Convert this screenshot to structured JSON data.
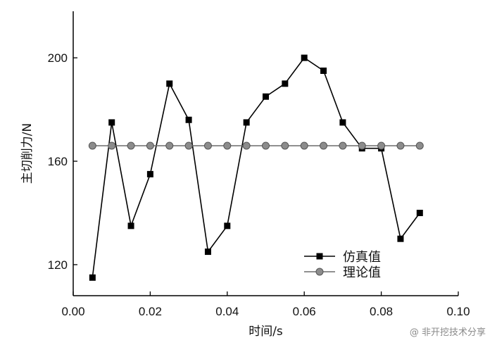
{
  "chart_data": {
    "type": "line",
    "title": "",
    "xlabel": "时间/s",
    "ylabel": "主切削力/N",
    "xlim": [
      0.0,
      0.1
    ],
    "ylim": [
      108,
      218
    ],
    "xticks": [
      "0.00",
      "0.02",
      "0.04",
      "0.06",
      "0.08",
      "0.10"
    ],
    "yticks": [
      "120",
      "160",
      "200"
    ],
    "grid": false,
    "legend_position": "bottom-right",
    "series": [
      {
        "name": "仿真值",
        "marker": "square",
        "color": "#000000",
        "x": [
          0.005,
          0.01,
          0.015,
          0.02,
          0.025,
          0.03,
          0.035,
          0.04,
          0.045,
          0.05,
          0.055,
          0.06,
          0.065,
          0.07,
          0.075,
          0.08,
          0.085,
          0.09
        ],
        "y": [
          115,
          175,
          135,
          155,
          190,
          176,
          125,
          135,
          175,
          185,
          190,
          200,
          195,
          175,
          165,
          165,
          130,
          140
        ]
      },
      {
        "name": "理论值",
        "marker": "circle",
        "color": "#6b6b6b",
        "x": [
          0.005,
          0.01,
          0.015,
          0.02,
          0.025,
          0.03,
          0.035,
          0.04,
          0.045,
          0.05,
          0.055,
          0.06,
          0.065,
          0.07,
          0.075,
          0.08,
          0.085,
          0.09
        ],
        "y": [
          166,
          166,
          166,
          166,
          166,
          166,
          166,
          166,
          166,
          166,
          166,
          166,
          166,
          166,
          166,
          166,
          166,
          166
        ]
      }
    ]
  },
  "watermark": {
    "text": "@ 非开挖技术分享"
  }
}
